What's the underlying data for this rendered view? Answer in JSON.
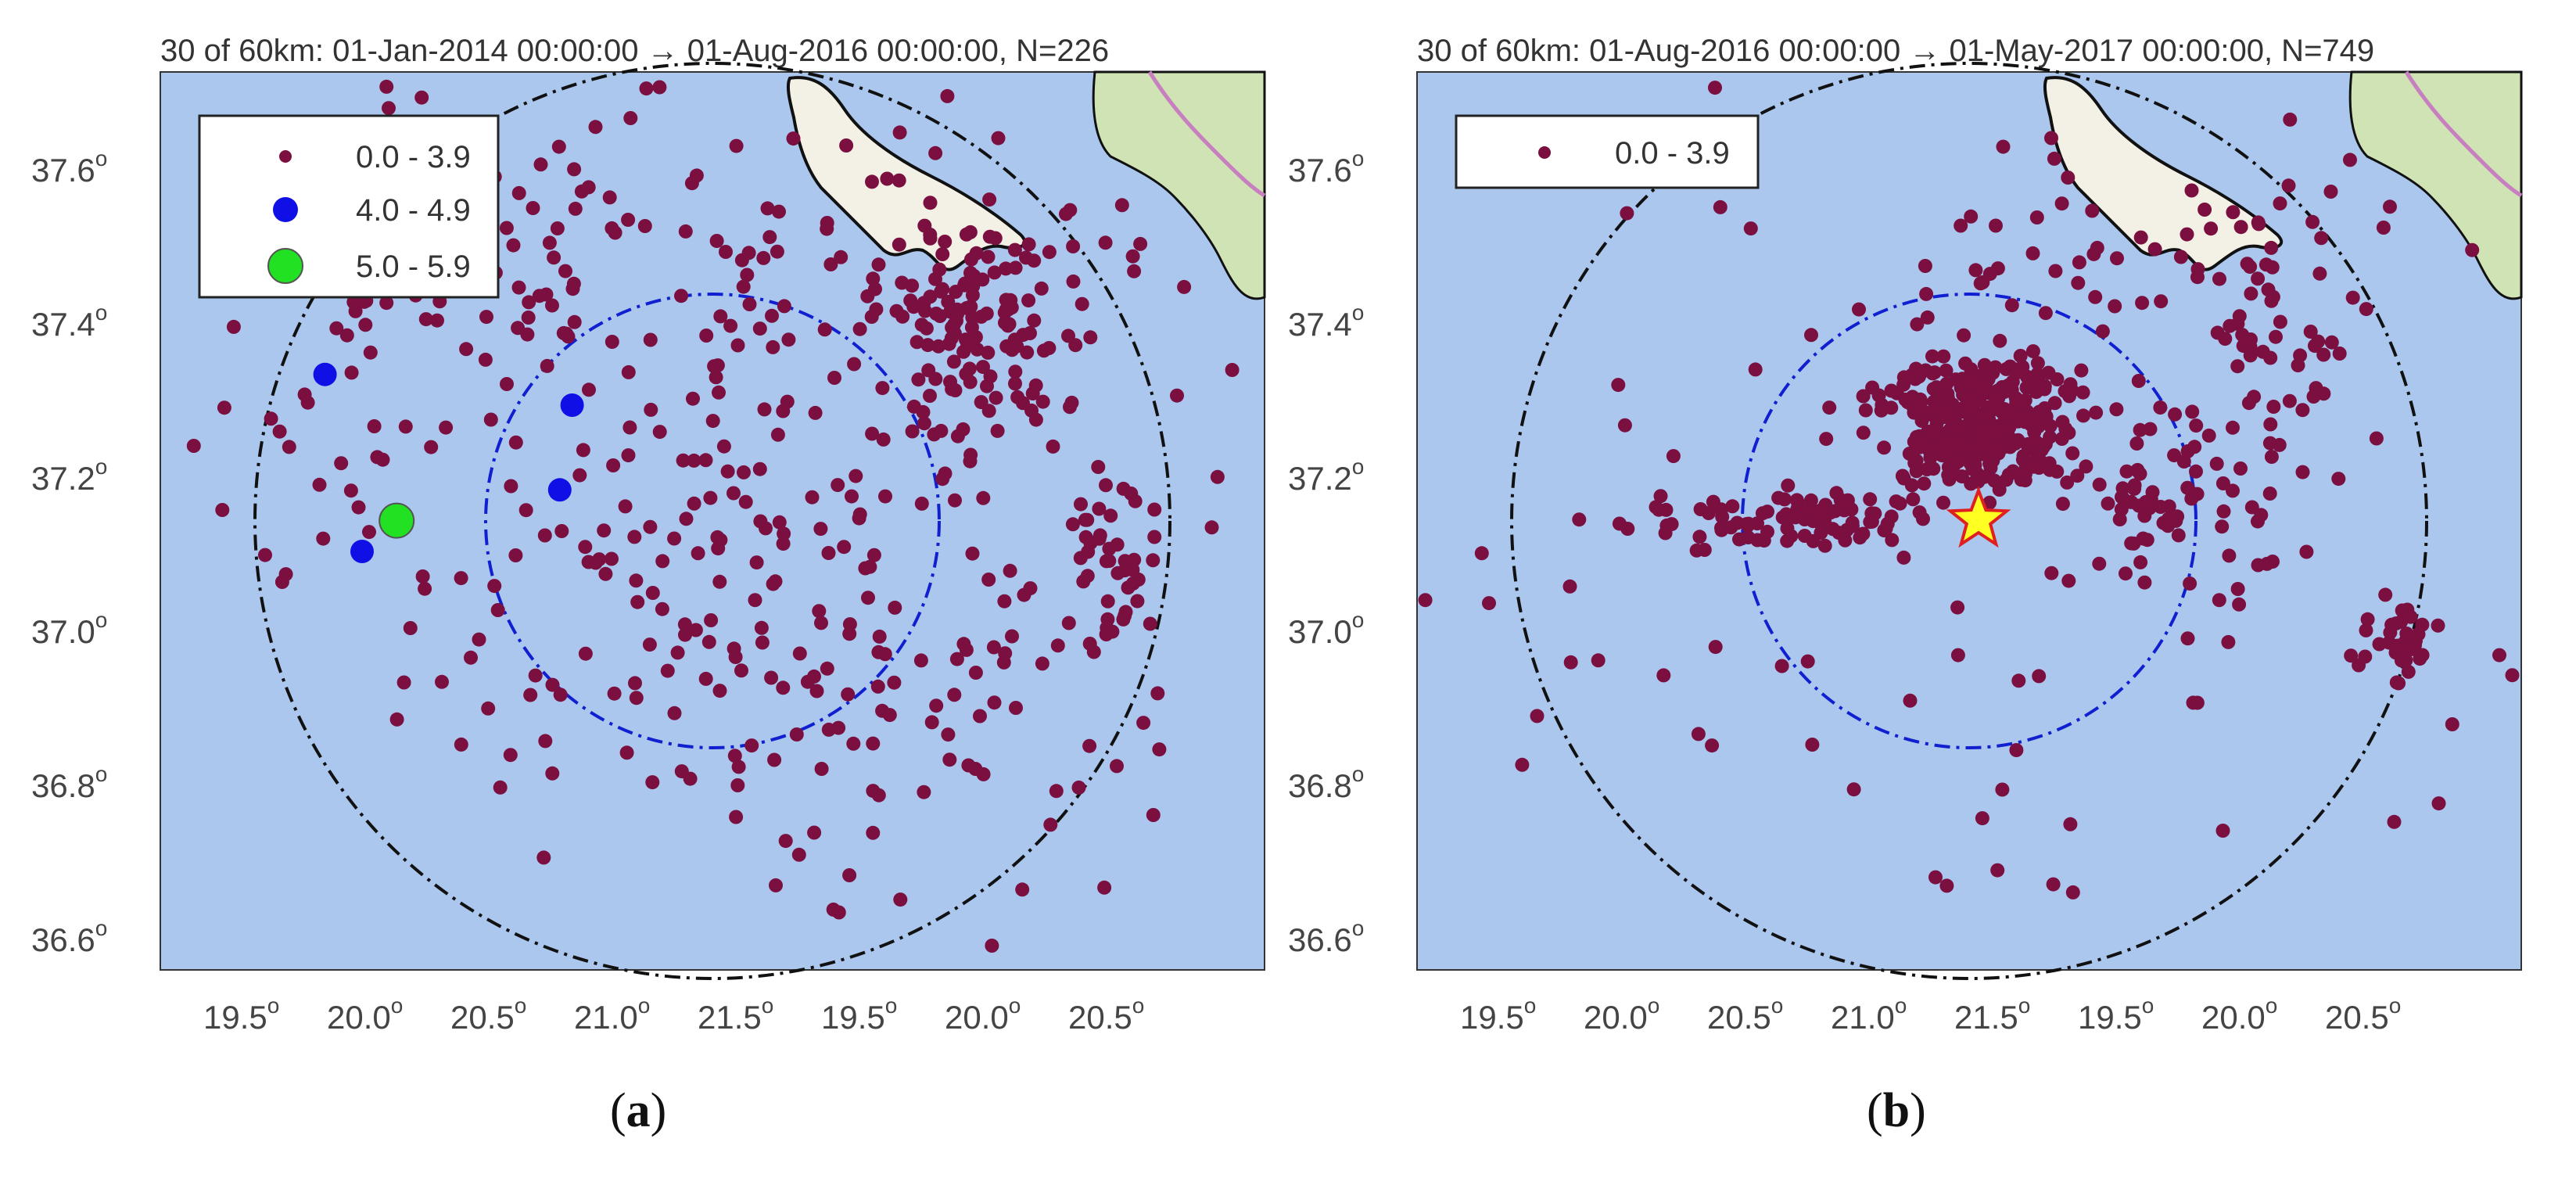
{
  "figure": {
    "panels": [
      {
        "id": "a",
        "title": "30 of 60km: 01-Jan-2014 00:00:00 → 01-Aug-2016 00:00:00, N=226",
        "label_prefix": "(",
        "label_letter": "a",
        "label_suffix": ")",
        "y_ticks": [
          "37.6",
          "37.4",
          "37.2",
          "37.0",
          "36.8",
          "36.6"
        ],
        "y_tick_values": [
          37.6,
          37.4,
          37.2,
          37.0,
          36.8,
          36.6
        ],
        "x_ticks": [
          "19.5",
          "20.0",
          "20.5",
          "21.0",
          "21.5",
          "19.5",
          "20.0",
          "20.5"
        ],
        "degree_symbol": "o",
        "legend": [
          {
            "range": "0.0 - 3.9",
            "color": "#7b0f3f"
          },
          {
            "range": "4.0 - 4.9",
            "color": "#1010e6"
          },
          {
            "range": "5.0 - 5.9",
            "color": "#22e022"
          }
        ],
        "large_events": [
          {
            "lon": 19.85,
            "lat": 37.33,
            "mag_class": "4.0 - 4.9"
          },
          {
            "lon": 20.0,
            "lat": 37.1,
            "mag_class": "4.0 - 4.9"
          },
          {
            "lon": 20.85,
            "lat": 37.29,
            "mag_class": "4.0 - 4.9"
          },
          {
            "lon": 20.8,
            "lat": 37.18,
            "mag_class": "4.0 - 4.9"
          },
          {
            "lon": 20.14,
            "lat": 37.14,
            "mag_class": "5.0 - 5.9"
          }
        ],
        "mainshock_star": false,
        "n_events": 226
      },
      {
        "id": "b",
        "title": "30 of 60km: 01-Aug-2016 00:00:00 → 01-May-2017 00:00:00, N=749",
        "label_prefix": "(",
        "label_letter": "b",
        "label_suffix": ")",
        "y_ticks": [
          "37.6",
          "37.4",
          "37.2",
          "37.0",
          "36.8",
          "36.6"
        ],
        "y_tick_values": [
          37.6,
          37.4,
          37.2,
          37.0,
          36.8,
          36.6
        ],
        "x_ticks": [
          "19.5",
          "20.0",
          "20.5",
          "21.0",
          "21.5",
          "19.5",
          "20.0",
          "20.5"
        ],
        "degree_symbol": "o",
        "legend": [
          {
            "range": "0.0 - 3.9",
            "color": "#7b0f3f"
          }
        ],
        "large_events": [],
        "mainshock_star": true,
        "n_events": 749
      }
    ],
    "colors": {
      "sea": "#abc7ee",
      "land": "#f3f1e6",
      "land_green": "#cfe3b5",
      "road": "#c77fc0",
      "event": "#7b0f3f",
      "inner_circle": "#1020d0",
      "outer_circle": "#111111",
      "star_fill": "#ffff22",
      "star_stroke": "#e02020"
    }
  }
}
